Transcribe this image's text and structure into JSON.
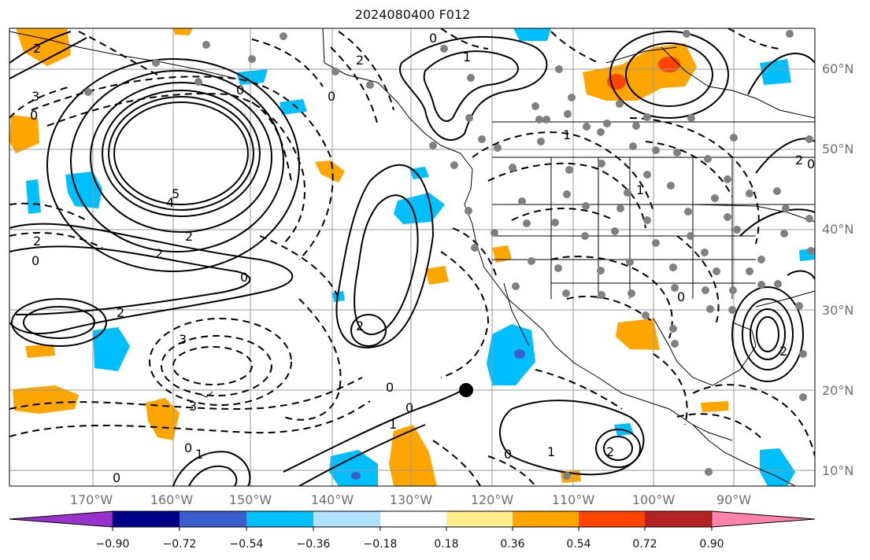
{
  "title": "2024080400 F012",
  "lat_labels": [
    "60°N",
    "50°N",
    "40°N",
    "30°N",
    "20°N",
    "10°N"
  ],
  "lon_labels": [
    "170°W",
    "160°W",
    "150°W",
    "140°W",
    "130°W",
    "120°W",
    "110°W",
    "100°W",
    "90°W"
  ],
  "colorbar": {
    "tick_labels": [
      "−0.90",
      "−0.72",
      "−0.54",
      "−0.36",
      "−0.18",
      "0.18",
      "0.36",
      "0.54",
      "0.72",
      "0.90"
    ],
    "colors": [
      "#9932cc",
      "#00008b",
      "#3a5fcd",
      "#00bfff",
      "#b0e2ff",
      "#ffffff",
      "#ffec8b",
      "#ffa500",
      "#ff4500",
      "#b22222",
      "#ff82ab"
    ]
  },
  "contour_labels": [
    "2",
    "0",
    "3",
    "0",
    "2",
    "1",
    "0",
    "5",
    "4",
    "2",
    "2",
    "0",
    "2",
    "3",
    "0",
    "2",
    "0",
    "1",
    "1",
    "0",
    "1",
    "3",
    "0",
    "2",
    "0",
    "2",
    "0",
    "2",
    "2",
    "0",
    "1",
    "0",
    "1",
    "0"
  ],
  "colors": {
    "land_line": "#000000",
    "grid": "#9a9a9a",
    "station_dot": "#808080",
    "center_marker": "#000000"
  }
}
